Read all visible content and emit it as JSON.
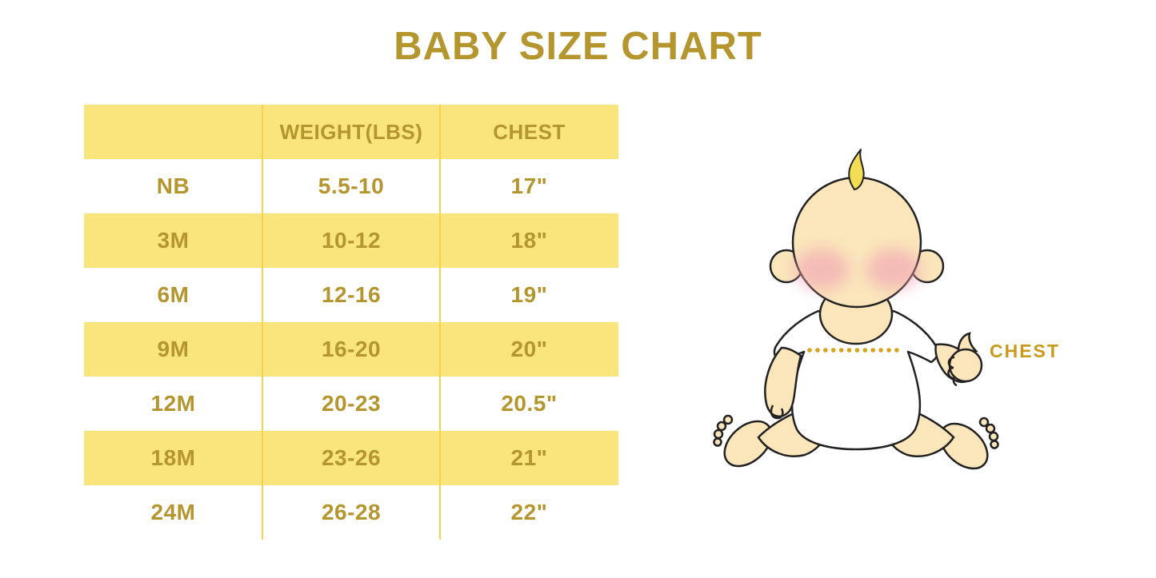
{
  "page": {
    "title": "BABY SIZE CHART"
  },
  "chart_data": {
    "type": "table",
    "title": "BABY SIZE CHART",
    "columns": [
      "",
      "WEIGHT(LBS)",
      "CHEST"
    ],
    "rows": [
      [
        "NB",
        "5.5-10",
        "17\""
      ],
      [
        "3M",
        "10-12",
        "18\""
      ],
      [
        "6M",
        "12-16",
        "19\""
      ],
      [
        "9M",
        "16-20",
        "20\""
      ],
      [
        "12M",
        "20-23",
        "20.5\""
      ],
      [
        "18M",
        "23-26",
        "21\""
      ],
      [
        "24M",
        "26-28",
        "22\""
      ]
    ],
    "layout_hints": {
      "header_row_background": "yellow",
      "striped_rows_yellow": [
        "3M",
        "9M",
        "18M"
      ],
      "striped_rows_white": [
        "NB",
        "6M",
        "12M",
        "24M"
      ],
      "grid": "vertical column dividers only, no outer border"
    }
  },
  "diagram": {
    "label": "CHEST",
    "description": "cartoon baby sitting, dotted measurement line across chest"
  },
  "colors": {
    "background": "#FFFFFF",
    "gold_text": "#B5952D",
    "row_yellow": "#FAE57D",
    "divider_yellow": "#F5D24A",
    "chest_label_gold": "#C9991B",
    "dotted_line_gold": "#D4A41C",
    "baby_skin": "#FBE6BB",
    "baby_cheek": "#F0A0B4",
    "baby_hair": "#F3DD54",
    "baby_outline": "#222222",
    "onesie_white": "#FFFFFF"
  }
}
